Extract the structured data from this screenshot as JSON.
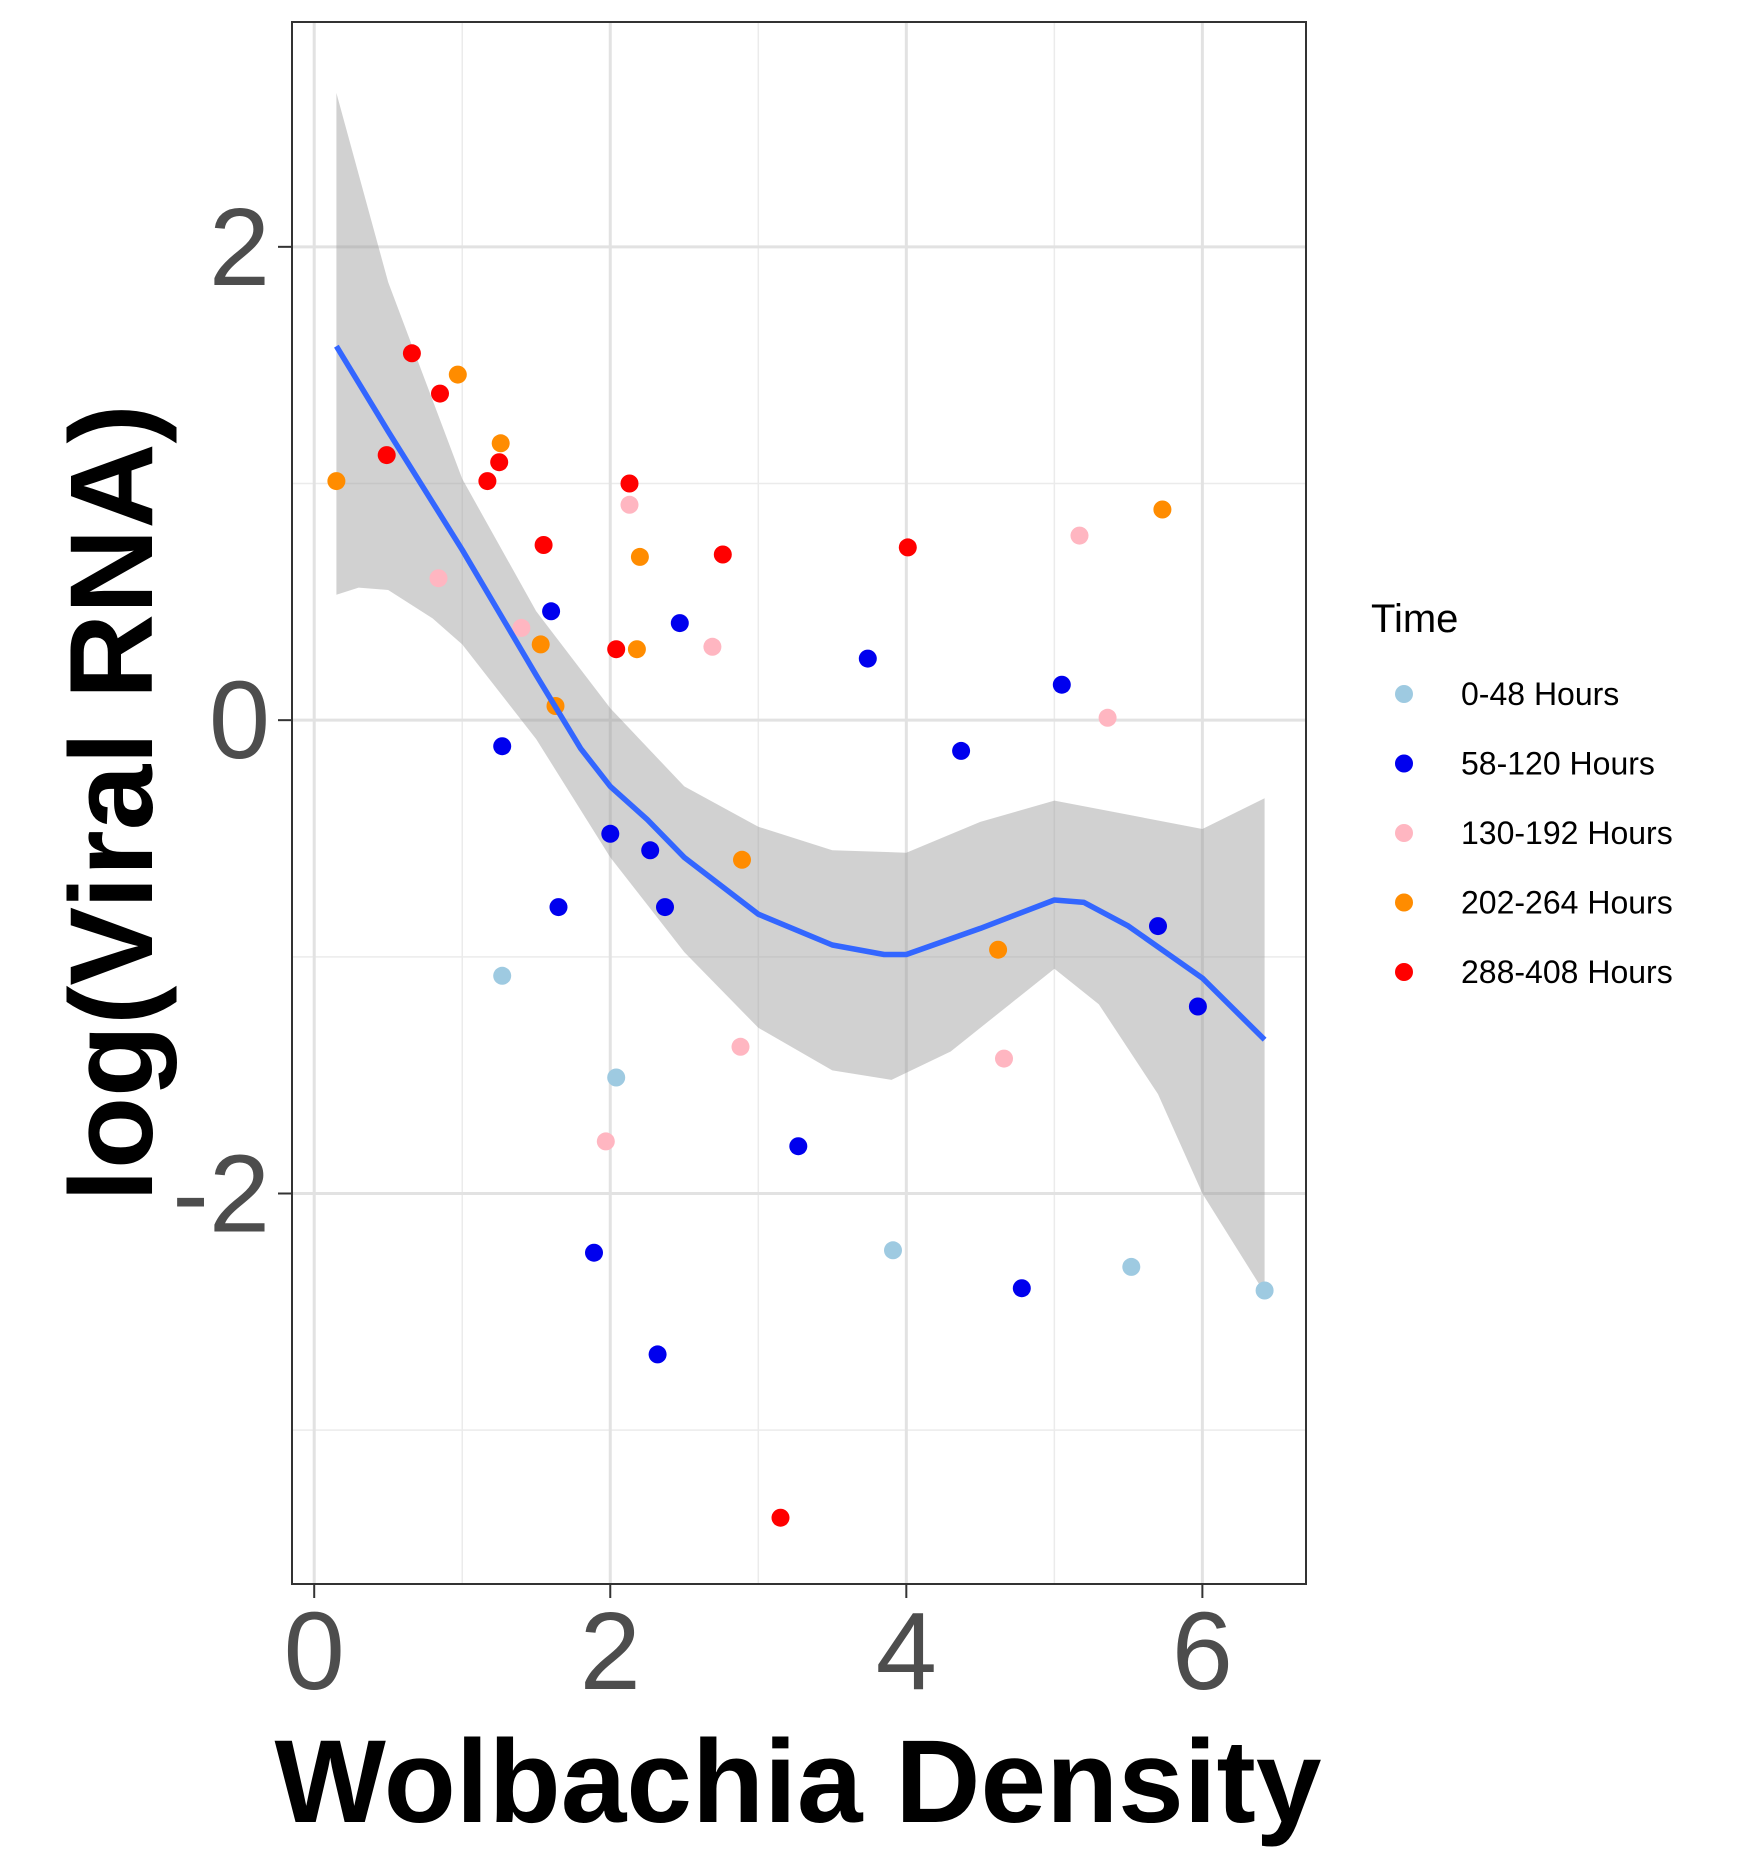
{
  "chart_data": {
    "type": "scatter",
    "xlabel": "Wolbachia Density",
    "ylabel": "log(Viral RNA)",
    "xlim": [
      -0.15,
      6.7
    ],
    "ylim": [
      -3.65,
      2.95
    ],
    "x_ticks": [
      0,
      2,
      4,
      6
    ],
    "x_tick_labels": [
      "0",
      "2",
      "4",
      "6"
    ],
    "y_ticks": [
      -2,
      0,
      2
    ],
    "y_tick_labels": [
      "-2",
      "0",
      "2"
    ],
    "x_minor": [
      1,
      3,
      5
    ],
    "y_minor": [
      -3,
      -1,
      1
    ],
    "grid": true,
    "legend": {
      "title": "Time",
      "position": "right"
    },
    "series": [
      {
        "name": "0-48 Hours",
        "color": "#9ecae1",
        "points": [
          [
            1.27,
            -1.08
          ],
          [
            2.04,
            -1.51
          ],
          [
            3.91,
            -2.24
          ],
          [
            5.52,
            -2.31
          ],
          [
            6.42,
            -2.41
          ]
        ]
      },
      {
        "name": "58-120 Hours",
        "color": "#0000ee",
        "points": [
          [
            1.27,
            -0.11
          ],
          [
            1.6,
            0.46
          ],
          [
            1.65,
            -0.79
          ],
          [
            1.89,
            -2.25
          ],
          [
            2.0,
            -0.48
          ],
          [
            2.27,
            -0.55
          ],
          [
            2.32,
            -2.68
          ],
          [
            2.37,
            -0.79
          ],
          [
            2.47,
            0.41
          ],
          [
            3.27,
            -1.8
          ],
          [
            3.74,
            0.26
          ],
          [
            4.37,
            -0.13
          ],
          [
            4.78,
            -2.4
          ],
          [
            5.05,
            0.15
          ],
          [
            5.7,
            -0.87
          ],
          [
            5.97,
            -1.21
          ]
        ]
      },
      {
        "name": "130-192 Hours",
        "color": "#ffb6c1",
        "points": [
          [
            0.84,
            0.6
          ],
          [
            1.4,
            0.39
          ],
          [
            1.97,
            -1.78
          ],
          [
            2.13,
            0.91
          ],
          [
            2.69,
            0.31
          ],
          [
            2.88,
            -1.38
          ],
          [
            4.66,
            -1.43
          ],
          [
            5.17,
            0.78
          ],
          [
            5.36,
            0.01
          ]
        ]
      },
      {
        "name": "202-264 Hours",
        "color": "#ff8c00",
        "points": [
          [
            0.15,
            1.01
          ],
          [
            0.97,
            1.46
          ],
          [
            1.26,
            1.17
          ],
          [
            1.53,
            0.32
          ],
          [
            1.63,
            0.06
          ],
          [
            2.18,
            0.3
          ],
          [
            2.2,
            0.69
          ],
          [
            2.89,
            -0.59
          ],
          [
            4.62,
            -0.97
          ],
          [
            5.73,
            0.89
          ]
        ]
      },
      {
        "name": "288-408 Hours",
        "color": "#ff0000",
        "points": [
          [
            0.49,
            1.12
          ],
          [
            0.66,
            1.55
          ],
          [
            0.85,
            1.38
          ],
          [
            1.17,
            1.01
          ],
          [
            1.25,
            1.09
          ],
          [
            1.55,
            0.74
          ],
          [
            2.04,
            0.3
          ],
          [
            2.13,
            1.0
          ],
          [
            2.76,
            0.7
          ],
          [
            3.15,
            -3.37
          ],
          [
            4.01,
            0.73
          ]
        ]
      }
    ],
    "smooth": {
      "method": "loess",
      "color": "#3366ff",
      "fit": [
        [
          0.15,
          1.58
        ],
        [
          0.5,
          1.22
        ],
        [
          1.0,
          0.72
        ],
        [
          1.5,
          0.19
        ],
        [
          1.8,
          -0.12
        ],
        [
          2.0,
          -0.28
        ],
        [
          2.25,
          -0.42
        ],
        [
          2.5,
          -0.58
        ],
        [
          3.0,
          -0.82
        ],
        [
          3.5,
          -0.95
        ],
        [
          3.85,
          -0.99
        ],
        [
          4.0,
          -0.99
        ],
        [
          4.5,
          -0.88
        ],
        [
          5.0,
          -0.76
        ],
        [
          5.2,
          -0.77
        ],
        [
          5.5,
          -0.87
        ],
        [
          6.0,
          -1.09
        ],
        [
          6.42,
          -1.35
        ]
      ],
      "band_lower": [
        [
          0.15,
          0.53
        ],
        [
          0.3,
          0.56
        ],
        [
          0.5,
          0.55
        ],
        [
          0.8,
          0.43
        ],
        [
          1.0,
          0.32
        ],
        [
          1.5,
          -0.08
        ],
        [
          2.0,
          -0.58
        ],
        [
          2.5,
          -0.98
        ],
        [
          3.0,
          -1.3
        ],
        [
          3.5,
          -1.48
        ],
        [
          3.9,
          -1.52
        ],
        [
          4.3,
          -1.4
        ],
        [
          4.7,
          -1.2
        ],
        [
          5.0,
          -1.05
        ],
        [
          5.3,
          -1.2
        ],
        [
          5.7,
          -1.58
        ],
        [
          6.0,
          -2.0
        ],
        [
          6.42,
          -2.42
        ]
      ],
      "band_upper": [
        [
          0.15,
          2.65
        ],
        [
          0.5,
          1.85
        ],
        [
          1.0,
          1.02
        ],
        [
          1.5,
          0.46
        ],
        [
          2.0,
          0.05
        ],
        [
          2.5,
          -0.28
        ],
        [
          3.0,
          -0.45
        ],
        [
          3.5,
          -0.55
        ],
        [
          4.0,
          -0.56
        ],
        [
          4.5,
          -0.43
        ],
        [
          5.0,
          -0.34
        ],
        [
          5.5,
          -0.4
        ],
        [
          6.0,
          -0.46
        ],
        [
          6.42,
          -0.33
        ]
      ]
    }
  }
}
